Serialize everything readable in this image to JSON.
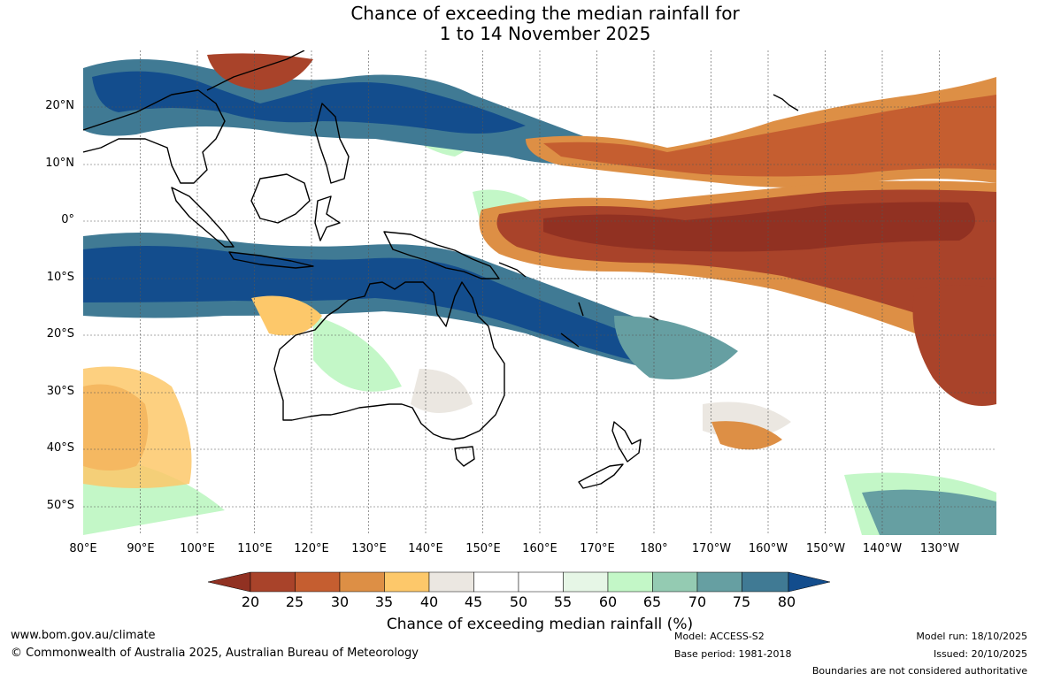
{
  "title": {
    "line1": "Chance of exceeding the median rainfall for",
    "line2": "1 to 14 November 2025"
  },
  "map": {
    "region": "Australia, Maritime Continent and western/central Pacific",
    "lat_range": [
      -55,
      30
    ],
    "lon_range": [
      80,
      240
    ],
    "lat_labels": [
      "20°N",
      "10°N",
      "0°",
      "10°S",
      "20°S",
      "30°S",
      "40°S",
      "50°S"
    ],
    "lon_labels": [
      "80°E",
      "90°E",
      "100°E",
      "110°E",
      "120°E",
      "130°E",
      "140°E",
      "150°E",
      "160°E",
      "170°E",
      "180°",
      "170°W",
      "160°W",
      "150°W",
      "140°W",
      "130°W"
    ]
  },
  "colorbar": {
    "ticks": [
      "20",
      "25",
      "30",
      "35",
      "40",
      "45",
      "50",
      "55",
      "60",
      "65",
      "70",
      "75",
      "80"
    ],
    "colors": [
      "#913122",
      "#a9432a",
      "#c55e30",
      "#dd8f45",
      "#fdc86a",
      "#ebe7e1",
      "#ffffff",
      "#ffffff",
      "#e6f6e6",
      "#c3f7c7",
      "#94cbb2",
      "#669fa2",
      "#407a94",
      "#134d8d"
    ],
    "label": "Chance of exceeding median rainfall (%)"
  },
  "footer": {
    "website": "www.bom.gov.au/climate",
    "copyright": "© Commonwealth of Australia 2025, Australian Bureau of Meteorology",
    "model": "Model: ACCESS-S2",
    "base_period": "Base period: 1981-2018",
    "model_run": "Model run: 18/10/2025",
    "issued": "Issued: 20/10/2025",
    "disclaimer": "Boundaries are not considered authoritative"
  }
}
